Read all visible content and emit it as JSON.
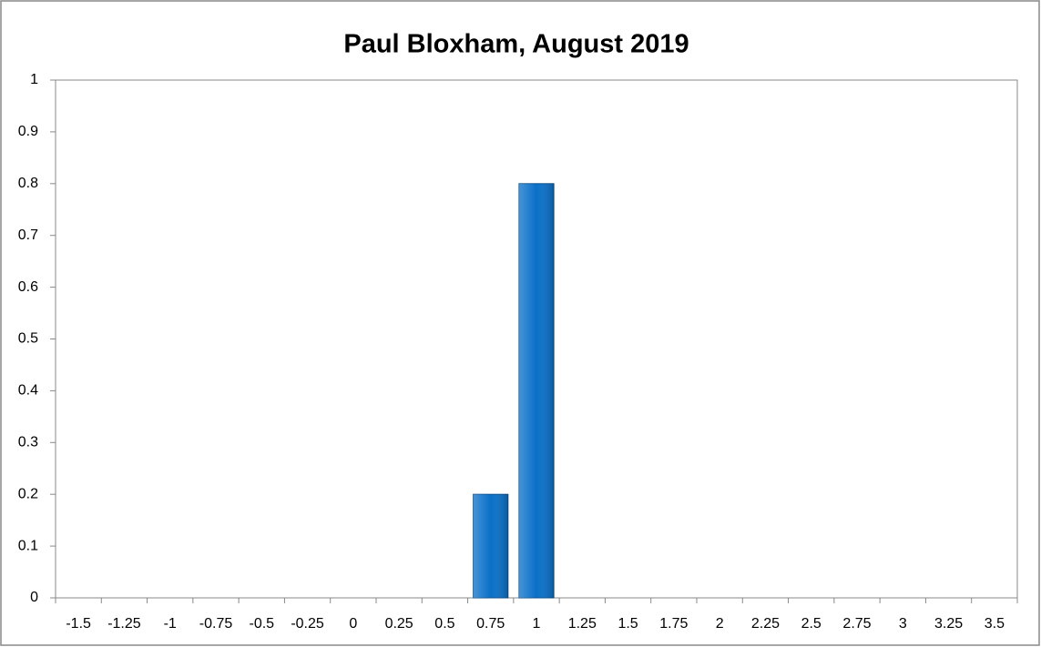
{
  "chart_data": {
    "type": "bar",
    "title": "Paul Bloxham, August 2019",
    "categories": [
      "-1.5",
      "-1.25",
      "-1",
      "-0.75",
      "-0.5",
      "-0.25",
      "0",
      "0.25",
      "0.5",
      "0.75",
      "1",
      "1.25",
      "1.5",
      "1.75",
      "2",
      "2.25",
      "2.5",
      "2.75",
      "3",
      "3.25",
      "3.5"
    ],
    "values": [
      0,
      0,
      0,
      0,
      0,
      0,
      0,
      0,
      0,
      0.2,
      0.8,
      0,
      0,
      0,
      0,
      0,
      0,
      0,
      0,
      0,
      0
    ],
    "color": "#0a70c8",
    "ylim": [
      0,
      1
    ],
    "yticks": [
      0,
      0.1,
      0.2,
      0.3,
      0.4,
      0.5,
      0.6,
      0.7,
      0.8,
      0.9,
      1
    ],
    "grid": false
  }
}
